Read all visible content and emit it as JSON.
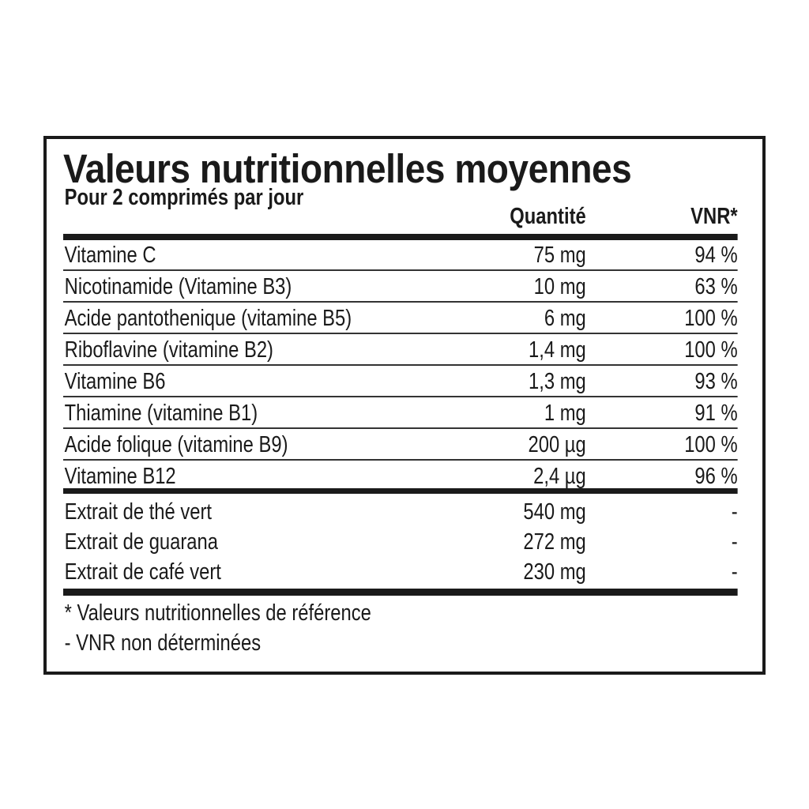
{
  "title": "Valeurs nutritionnelles moyennes",
  "subtitle": "Pour 2 comprimés par jour",
  "columns": {
    "quantity": "Quantité",
    "vnr": "VNR*"
  },
  "vitamins": [
    {
      "name": "Vitamine C",
      "quantity": "75 mg",
      "vnr": "94 %"
    },
    {
      "name": "Nicotinamide (Vitamine B3)",
      "quantity": "10 mg",
      "vnr": "63 %"
    },
    {
      "name": "Acide pantothenique (vitamine B5)",
      "quantity": "6 mg",
      "vnr": "100 %"
    },
    {
      "name": "Riboflavine (vitamine B2)",
      "quantity": "1,4 mg",
      "vnr": "100 %"
    },
    {
      "name": "Vitamine B6",
      "quantity": "1,3 mg",
      "vnr": "93 %"
    },
    {
      "name": "Thiamine (vitamine B1)",
      "quantity": "1 mg",
      "vnr": "91 %"
    },
    {
      "name": "Acide folique (vitamine B9)",
      "quantity": "200 µg",
      "vnr": "100 %"
    },
    {
      "name": "Vitamine B12",
      "quantity": "2,4 µg",
      "vnr": "96 %"
    }
  ],
  "extracts": [
    {
      "name": "Extrait de thé vert",
      "quantity": "540 mg",
      "vnr": "-"
    },
    {
      "name": "Extrait de guarana",
      "quantity": "272 mg",
      "vnr": "-"
    },
    {
      "name": "Extrait de café vert",
      "quantity": "230 mg",
      "vnr": "-"
    }
  ],
  "footnotes": [
    "* Valeurs nutritionnelles de référence",
    "- VNR non déterminées"
  ]
}
